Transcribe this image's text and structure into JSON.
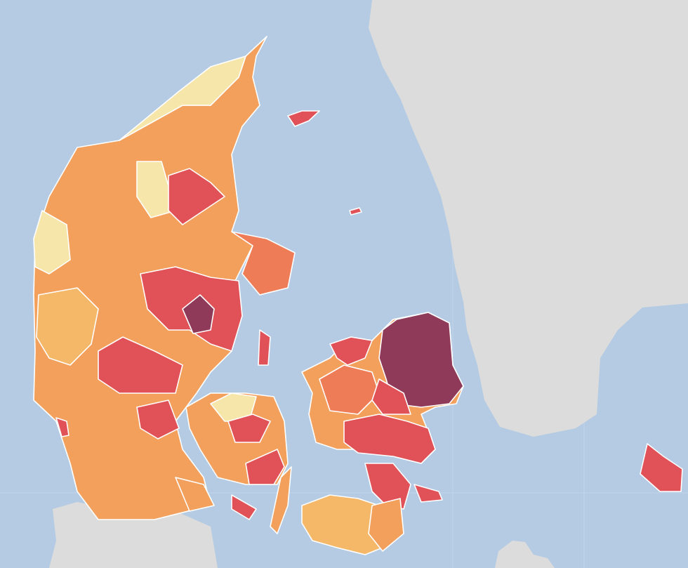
{
  "map": {
    "type": "choropleth",
    "sea_color": "#b4cbe3",
    "foreign_land_color": "#dcdcdc",
    "border_color": "#ffffff",
    "palette": {
      "level1": "#f6e6a9",
      "level2": "#f4b868",
      "level3": "#f2a05c",
      "level4": "#ee7c57",
      "level5": "#e05258",
      "level6": "#8f3a58"
    }
  }
}
